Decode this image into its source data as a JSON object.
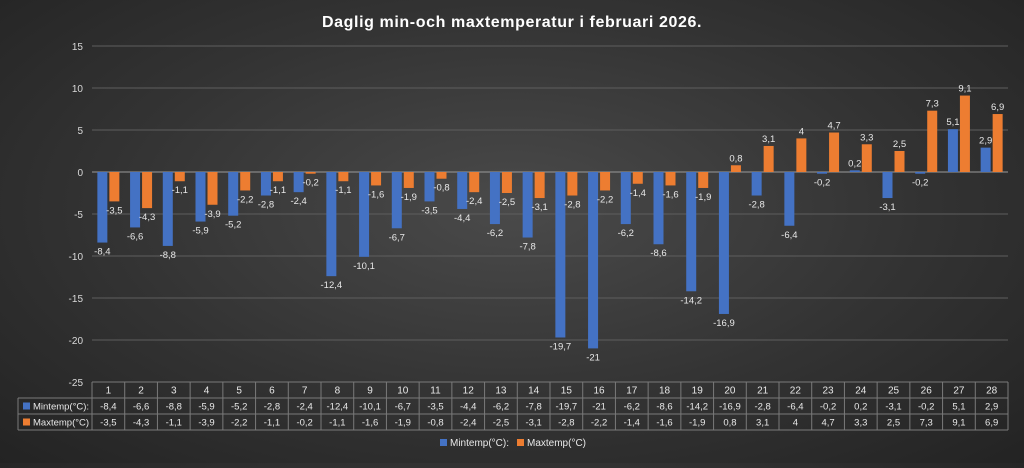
{
  "chart_data": {
    "type": "bar",
    "title": "Daglig min-och maxtemperatur i februari 2026.",
    "categories": [
      "1",
      "2",
      "3",
      "4",
      "5",
      "6",
      "7",
      "8",
      "9",
      "10",
      "11",
      "12",
      "13",
      "14",
      "15",
      "16",
      "17",
      "18",
      "19",
      "20",
      "21",
      "22",
      "23",
      "24",
      "25",
      "26",
      "27",
      "28"
    ],
    "series": [
      {
        "name": "Mintemp(°C):",
        "color": "#4472C4",
        "values": [
          -8.4,
          -6.6,
          -8.8,
          -5.9,
          -5.2,
          -2.8,
          -2.4,
          -12.4,
          -10.1,
          -6.7,
          -3.5,
          -4.4,
          -6.2,
          -7.8,
          -19.7,
          -21,
          -6.2,
          -8.6,
          -14.2,
          -16.9,
          -2.8,
          -6.4,
          -0.2,
          0.2,
          -3.1,
          -0.2,
          5.1,
          2.9
        ],
        "labels": [
          "-8,4",
          "-6,6",
          "-8,8",
          "-5,9",
          "-5,2",
          "-2,8",
          "-2,4",
          "-12,4",
          "-10,1",
          "-6,7",
          "-3,5",
          "-4,4",
          "-6,2",
          "-7,8",
          "-19,7",
          "-21",
          "-6,2",
          "-8,6",
          "-14,2",
          "-16,9",
          "-2,8",
          "-6,4",
          "-0,2",
          "0,2",
          "-3,1",
          "-0,2",
          "5,1",
          "2,9"
        ]
      },
      {
        "name": "Maxtemp(°C)",
        "color": "#ED7D31",
        "values": [
          -3.5,
          -4.3,
          -1.1,
          -3.9,
          -2.2,
          -1.1,
          -0.2,
          -1.1,
          -1.6,
          -1.9,
          -0.8,
          -2.4,
          -2.5,
          -3.1,
          -2.8,
          -2.2,
          -1.4,
          -1.6,
          -1.9,
          0.8,
          3.1,
          4,
          4.7,
          3.3,
          2.5,
          7.3,
          9.1,
          6.9
        ],
        "labels": [
          "-3,5",
          "-4,3",
          "-1,1",
          "-3,9",
          "-2,2",
          "-1,1",
          "-0,2",
          "-1,1",
          "-1,6",
          "-1,9",
          "-0,8",
          "-2,4",
          "-2,5",
          "-3,1",
          "-2,8",
          "-2,2",
          "-1,4",
          "-1,6",
          "-1,9",
          "0,8",
          "3,1",
          "4",
          "4,7",
          "3,3",
          "2,5",
          "7,3",
          "9,1",
          "6,9"
        ]
      }
    ],
    "yticks": [
      "15",
      "10",
      "5",
      "0",
      "-5",
      "-10",
      "-15",
      "-20",
      "-25"
    ],
    "ylim": [
      -25,
      15
    ],
    "grid": true,
    "legend": "bottom",
    "data_table": true
  }
}
